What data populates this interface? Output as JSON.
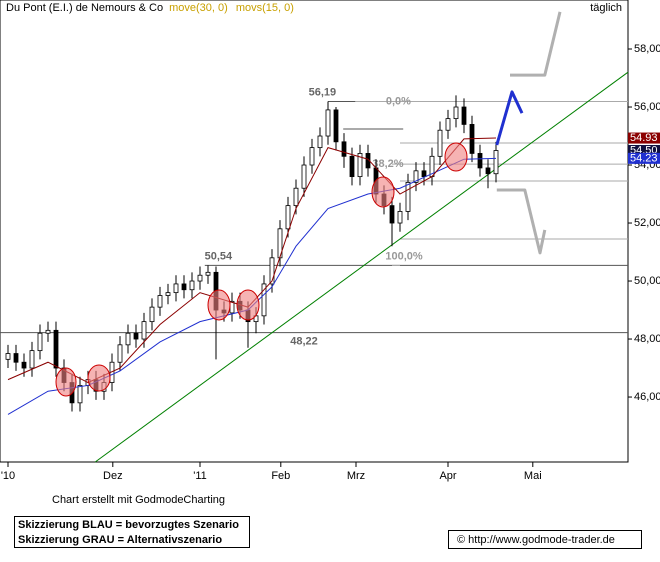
{
  "chart_data": {
    "type": "candlestick",
    "title": "Du Pont (E.I.) de Nemours & Co",
    "period": "täglich",
    "footnote": "Chart erstellt mit GodmodeCharting",
    "notes": [
      "Skizzierung BLAU = bevorzugtes Szenario",
      "Skizzierung GRAU = Alternativszenario"
    ],
    "source": "© http://www.godmode-trader.de",
    "xlim": [
      -1,
      77.5
    ],
    "ylim": [
      43.76,
      59.69
    ],
    "xticks": [
      {
        "value": 0,
        "label": "'10"
      },
      {
        "value": 13.1,
        "label": "Dez"
      },
      {
        "value": 24,
        "label": "'11"
      },
      {
        "value": 34.1,
        "label": "Feb"
      },
      {
        "value": 43.5,
        "label": "Mrz"
      },
      {
        "value": 55,
        "label": "Apr"
      },
      {
        "value": 65.6,
        "label": "Mai"
      }
    ],
    "yticks": [
      {
        "value": 46,
        "label": "46,00"
      },
      {
        "value": 48,
        "label": "48,00"
      },
      {
        "value": 50,
        "label": "50,00"
      },
      {
        "value": 52,
        "label": "52,00"
      },
      {
        "value": 54,
        "label": "54,00"
      },
      {
        "value": 56,
        "label": "56,00"
      },
      {
        "value": 58,
        "label": "58,00"
      }
    ],
    "x": [
      0,
      1,
      2,
      3,
      4,
      5,
      6,
      7,
      8,
      9,
      10,
      11,
      12,
      13,
      14,
      15,
      16,
      17,
      18,
      19,
      20,
      21,
      22,
      23,
      24,
      25,
      26,
      27,
      28,
      29,
      30,
      31,
      32,
      33,
      34,
      35,
      36,
      37,
      38,
      39,
      40,
      41,
      42,
      43,
      44,
      45,
      46,
      47,
      48,
      49,
      50,
      51,
      52,
      53,
      54,
      55,
      56,
      57,
      58,
      59,
      60,
      61
    ],
    "open": [
      47.3,
      47.5,
      47.2,
      47.0,
      47.6,
      48.2,
      48.3,
      47.0,
      46.5,
      45.8,
      46.4,
      46.6,
      46.2,
      46.5,
      47.2,
      47.8,
      48.2,
      48.0,
      48.6,
      49.1,
      49.5,
      49.6,
      49.9,
      49.7,
      50.0,
      50.2,
      50.3,
      49.0,
      48.9,
      49.3,
      49.0,
      48.6,
      48.8,
      49.9,
      50.8,
      51.8,
      52.6,
      53.2,
      54.0,
      54.6,
      55.0,
      55.9,
      54.8,
      54.3,
      53.6,
      54.4,
      53.9,
      53.0,
      52.6,
      52.0,
      52.4,
      53.4,
      53.8,
      53.6,
      54.3,
      55.2,
      55.6,
      56.0,
      55.4,
      54.4,
      53.9,
      53.7
    ],
    "high": [
      47.8,
      47.8,
      47.5,
      47.9,
      48.5,
      48.6,
      48.6,
      47.3,
      46.8,
      46.7,
      46.9,
      46.9,
      46.8,
      47.5,
      48.1,
      48.5,
      48.5,
      48.9,
      49.4,
      49.8,
      49.9,
      50.2,
      50.2,
      50.3,
      50.5,
      50.54,
      50.5,
      49.3,
      49.6,
      49.6,
      49.3,
      49.1,
      50.2,
      51.1,
      52.1,
      52.9,
      53.5,
      54.3,
      54.9,
      55.3,
      56.19,
      56.0,
      55.1,
      54.6,
      54.7,
      54.7,
      54.2,
      53.3,
      52.9,
      52.7,
      53.7,
      54.1,
      54.1,
      54.6,
      55.5,
      55.9,
      56.4,
      56.3,
      55.7,
      54.7,
      54.2,
      54.8
    ],
    "low": [
      47.0,
      46.9,
      46.7,
      46.7,
      47.3,
      47.9,
      46.7,
      46.2,
      45.5,
      45.5,
      46.1,
      45.9,
      45.9,
      46.2,
      46.9,
      47.5,
      47.7,
      47.7,
      48.3,
      48.8,
      49.2,
      49.3,
      49.4,
      49.4,
      49.7,
      49.9,
      47.3,
      48.6,
      48.6,
      48.7,
      47.7,
      48.2,
      48.5,
      49.6,
      50.5,
      51.5,
      52.3,
      52.9,
      53.7,
      54.3,
      54.7,
      54.5,
      53.9,
      53.3,
      53.3,
      53.6,
      52.7,
      52.3,
      51.2,
      51.7,
      52.1,
      53.1,
      53.3,
      53.3,
      54.0,
      54.9,
      55.3,
      55.1,
      54.1,
      53.6,
      53.2,
      53.4
    ],
    "close": [
      47.5,
      47.2,
      47.0,
      47.6,
      48.2,
      48.3,
      47.0,
      46.5,
      45.8,
      46.4,
      46.6,
      46.2,
      46.5,
      47.2,
      47.8,
      48.2,
      48.0,
      48.6,
      49.1,
      49.5,
      49.6,
      49.9,
      49.7,
      50.0,
      50.2,
      50.3,
      49.0,
      48.9,
      49.3,
      49.0,
      48.6,
      48.8,
      49.9,
      50.8,
      51.8,
      52.6,
      53.2,
      54.0,
      54.6,
      55.0,
      55.9,
      54.8,
      54.3,
      53.6,
      54.4,
      53.9,
      53.0,
      52.6,
      52.0,
      52.4,
      53.4,
      53.8,
      53.6,
      54.3,
      55.2,
      55.6,
      56.0,
      55.4,
      54.4,
      53.9,
      53.7,
      54.5
    ],
    "series": [
      {
        "name": "move(30, 0)",
        "color": "#2030d0",
        "x": [
          0,
          5,
          10,
          14,
          19,
          24,
          30,
          33,
          36,
          40,
          45,
          49,
          53,
          57,
          61
        ],
        "values": [
          45.4,
          46.2,
          46.4,
          46.9,
          47.9,
          48.6,
          49.0,
          49.8,
          51.2,
          52.5,
          53.0,
          53.2,
          53.7,
          54.2,
          54.23
        ]
      },
      {
        "name": "movs(15, 0)",
        "color": "#8b0000",
        "x": [
          0,
          5,
          10,
          14,
          19,
          24,
          30,
          33,
          36,
          40,
          45,
          49,
          53,
          57,
          61
        ],
        "values": [
          46.6,
          47.2,
          46.5,
          47.0,
          48.5,
          49.6,
          49.1,
          50.0,
          52.5,
          54.6,
          54.2,
          53.0,
          53.6,
          54.9,
          54.93
        ]
      }
    ],
    "price_tags": [
      {
        "value": 54.93,
        "color": "#8b0000"
      },
      {
        "value": 54.5,
        "label": "54.50",
        "color": "#101040"
      },
      {
        "value": 54.23,
        "color": "#2030d0"
      }
    ],
    "levels": [
      {
        "value": 56.19,
        "label": "56,19",
        "x": [
          40,
          77.5
        ],
        "label_x": 39.3,
        "color": "#555555"
      },
      {
        "value": 50.54,
        "label": "50,54",
        "x": [
          24.6,
          77.5
        ],
        "label_x": 26.3,
        "color": "#555555"
      },
      {
        "value": 48.22,
        "label": "48,22",
        "x": [
          -1,
          77.5
        ],
        "label_x": 37,
        "color": "#555555"
      },
      {
        "value": 55.24,
        "x": [
          41.9,
          49.4
        ],
        "color": "#555555"
      },
      {
        "value": 56.19,
        "label": "0,0%",
        "x": [
          43.4,
          77.5
        ],
        "label_x": 48.8,
        "color": "#aaaaaa"
      },
      {
        "value": 54.76,
        "x": [
          49,
          77.5
        ],
        "color": "#aaaaaa"
      },
      {
        "value": 54.03,
        "label": "38,2%",
        "x": [
          48,
          77.5
        ],
        "label_x": 47.5,
        "color": "#aaaaaa"
      },
      {
        "value": 53.45,
        "x": [
          49,
          77.5
        ],
        "color": "#aaaaaa"
      },
      {
        "value": 51.45,
        "x": [
          49,
          77.5
        ],
        "color": "#aaaaaa"
      },
      {
        "value": 50.54,
        "label": "100,0%",
        "x": [
          48,
          49
        ],
        "label_x": 49.5,
        "color": "#aaaaaa"
      }
    ],
    "trendline": {
      "color": "#008000",
      "x": [
        10.9,
        77.5
      ],
      "values": [
        43.76,
        57.2
      ]
    },
    "scenarios": [
      {
        "color": "#2030d0",
        "x": [
          61.1,
          63,
          64.25
        ],
        "values": [
          54.69,
          56.52,
          55.79
        ]
      },
      {
        "color": "#b0b0b0",
        "x": [
          62.75,
          67.1,
          69
        ],
        "values": [
          57.1,
          57.1,
          59.28
        ]
      },
      {
        "color": "#b0b0b0",
        "x": [
          61.1,
          64.6,
          66.5,
          67.1
        ],
        "values": [
          53.14,
          53.14,
          50.97,
          51.76
        ]
      }
    ]
  }
}
